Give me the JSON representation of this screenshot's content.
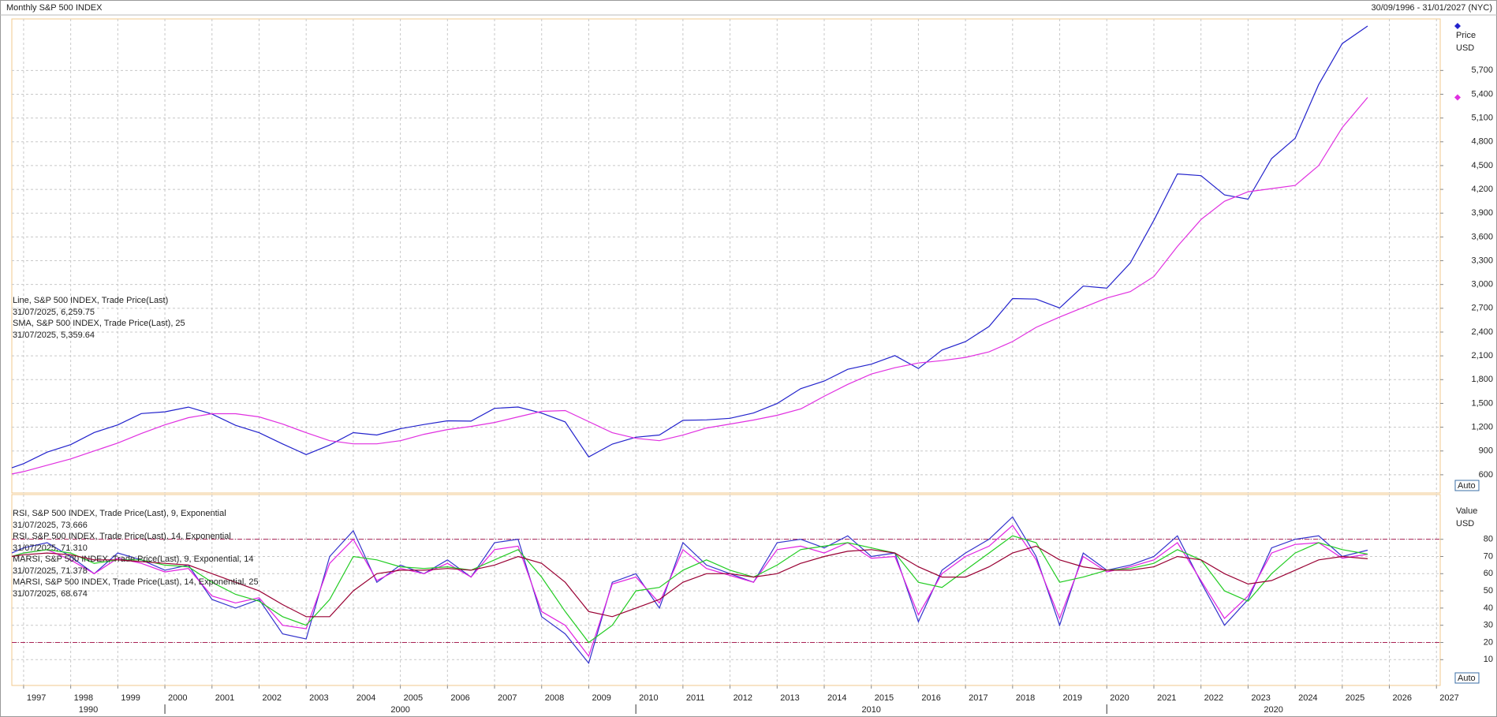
{
  "chart_data": [
    {
      "type": "line",
      "title": "Monthly S&P 500 INDEX",
      "subtitle": "30/09/1996 - 31/01/2027 (NYC)",
      "y_label": "Price",
      "y_unit": "USD",
      "scale_mode": "Auto",
      "grid": true,
      "x": [
        1996.75,
        1997,
        1997.5,
        1998,
        1998.5,
        1999,
        1999.5,
        2000,
        2000.5,
        2001,
        2001.5,
        2002,
        2002.5,
        2003,
        2003.5,
        2004,
        2004.5,
        2005,
        2005.5,
        2006,
        2006.5,
        2007,
        2007.5,
        2008,
        2008.5,
        2009,
        2009.5,
        2010,
        2010.5,
        2011,
        2011.5,
        2012,
        2012.5,
        2013,
        2013.5,
        2014,
        2014.5,
        2015,
        2015.5,
        2016,
        2016.5,
        2017,
        2017.5,
        2018,
        2018.5,
        2019,
        2019.5,
        2020,
        2020.5,
        2021,
        2021.5,
        2022,
        2022.5,
        2023,
        2023.5,
        2024,
        2024.5,
        2025,
        2025.54
      ],
      "xlim": [
        1996.75,
        2027.08
      ],
      "xticks": [
        1997,
        1998,
        1999,
        2000,
        2001,
        2002,
        2003,
        2004,
        2005,
        2006,
        2007,
        2008,
        2009,
        2010,
        2011,
        2012,
        2013,
        2014,
        2015,
        2016,
        2017,
        2018,
        2019,
        2020,
        2021,
        2022,
        2023,
        2024,
        2025,
        2026,
        2027
      ],
      "ylim": [
        370,
        6350
      ],
      "yticks": [
        600,
        900,
        {
          "value": 1200,
          "label": "1,200"
        },
        {
          "value": 1500,
          "label": "1,500"
        },
        {
          "value": 1800,
          "label": "1,800"
        },
        {
          "value": 2100,
          "label": "2,100"
        },
        {
          "value": 2400,
          "label": "2,400"
        },
        {
          "value": 2700,
          "label": "2,700"
        },
        {
          "value": 3000,
          "label": "3,000"
        },
        {
          "value": 3300,
          "label": "3,300"
        },
        {
          "value": 3600,
          "label": "3,600"
        },
        {
          "value": 3900,
          "label": "3,900"
        },
        {
          "value": 4200,
          "label": "4,200"
        },
        {
          "value": 4500,
          "label": "4,500"
        },
        {
          "value": 4800,
          "label": "4,800"
        },
        {
          "value": 5100,
          "label": "5,100"
        },
        {
          "value": 5400,
          "label": "5,400"
        },
        {
          "value": 5700,
          "label": "5,700"
        }
      ],
      "series": [
        {
          "name": "Line, S&P 500 INDEX, Trade Price(Last)",
          "last_label": "31/07/2025, 6,259.75",
          "color": "#2222cc",
          "values": [
            687,
            740,
            885,
            980,
            1133,
            1229,
            1372,
            1394,
            1454,
            1366,
            1224,
            1130,
            989,
            855,
            975,
            1131,
            1101,
            1181,
            1234,
            1280,
            1276,
            1438,
            1455,
            1378,
            1267,
            825,
            987,
            1073,
            1101,
            1286,
            1292,
            1312,
            1379,
            1498,
            1685,
            1782,
            1930,
            1995,
            2103,
            1940,
            2173,
            2279,
            2470,
            2823,
            2816,
            2704,
            2980,
            2954,
            3271,
            3811,
            4395,
            4373,
            4130,
            4076,
            4589,
            4845,
            5522,
            6040,
            6260
          ]
        },
        {
          "name": "SMA, S&P 500 INDEX, Trade Price(Last),  25",
          "last_label": "31/07/2025, 5,359.64",
          "color": "#e030e0",
          "values": [
            610,
            640,
            720,
            800,
            900,
            1000,
            1120,
            1230,
            1320,
            1370,
            1370,
            1330,
            1240,
            1130,
            1030,
            990,
            990,
            1030,
            1110,
            1170,
            1210,
            1260,
            1330,
            1400,
            1410,
            1270,
            1130,
            1060,
            1030,
            1100,
            1190,
            1240,
            1290,
            1350,
            1430,
            1590,
            1740,
            1870,
            1950,
            2010,
            2040,
            2080,
            2150,
            2280,
            2460,
            2590,
            2710,
            2830,
            2910,
            3100,
            3480,
            3820,
            4050,
            4170,
            4210,
            4250,
            4500,
            4980,
            5360
          ]
        }
      ]
    },
    {
      "type": "line",
      "y_label": "Value",
      "y_unit": "USD",
      "scale_mode": "Auto",
      "grid": true,
      "x": [
        1996.75,
        1997,
        1997.5,
        1998,
        1998.5,
        1999,
        1999.5,
        2000,
        2000.5,
        2001,
        2001.5,
        2002,
        2002.5,
        2003,
        2003.5,
        2004,
        2004.5,
        2005,
        2005.5,
        2006,
        2006.5,
        2007,
        2007.5,
        2008,
        2008.5,
        2009,
        2009.5,
        2010,
        2010.5,
        2011,
        2011.5,
        2012,
        2012.5,
        2013,
        2013.5,
        2014,
        2014.5,
        2015,
        2015.5,
        2016,
        2016.5,
        2017,
        2017.5,
        2018,
        2018.5,
        2019,
        2019.5,
        2020,
        2020.5,
        2021,
        2021.5,
        2022,
        2022.5,
        2023,
        2023.5,
        2024,
        2024.5,
        2025,
        2025.54
      ],
      "xlim": [
        1996.75,
        2027.08
      ],
      "xticks": [
        1997,
        1998,
        1999,
        2000,
        2001,
        2002,
        2003,
        2004,
        2005,
        2006,
        2007,
        2008,
        2009,
        2010,
        2011,
        2012,
        2013,
        2014,
        2015,
        2016,
        2017,
        2018,
        2019,
        2020,
        2021,
        2022,
        2023,
        2024,
        2025,
        2026,
        2027
      ],
      "x_groups": [
        "1990",
        "2000",
        "2010",
        "2020"
      ],
      "ylim": [
        -5,
        106
      ],
      "yticks": [
        10,
        20,
        30,
        40,
        50,
        60,
        70,
        80
      ],
      "reference_lines": [
        80,
        20
      ],
      "reference_color": "#aa2255",
      "series": [
        {
          "name": "RSI, S&P 500 INDEX, Trade Price(Last),  9, Exponential",
          "last_label": "31/07/2025, 73.666",
          "color": "#3333cc",
          "values": [
            72,
            75,
            78,
            70,
            60,
            72,
            68,
            62,
            65,
            45,
            40,
            45,
            25,
            22,
            70,
            85,
            55,
            65,
            60,
            68,
            58,
            78,
            80,
            35,
            25,
            8,
            55,
            60,
            40,
            78,
            65,
            60,
            55,
            78,
            80,
            75,
            82,
            70,
            72,
            32,
            62,
            72,
            80,
            93,
            70,
            30,
            72,
            62,
            65,
            70,
            82,
            55,
            30,
            45,
            75,
            80,
            82,
            70,
            73.666
          ]
        },
        {
          "name": "RSI, S&P 500 INDEX, Trade Price(Last),  14, Exponential",
          "last_label": "31/07/2025, 71.310",
          "color": "#e020e0",
          "values": [
            70,
            72,
            74,
            68,
            60,
            69,
            66,
            61,
            63,
            47,
            43,
            46,
            30,
            28,
            66,
            80,
            56,
            63,
            60,
            66,
            58,
            74,
            76,
            38,
            30,
            12,
            54,
            58,
            43,
            74,
            63,
            59,
            55,
            74,
            76,
            72,
            78,
            69,
            70,
            36,
            60,
            70,
            76,
            88,
            68,
            34,
            70,
            61,
            64,
            68,
            78,
            56,
            34,
            47,
            72,
            77,
            78,
            69,
            71.31
          ]
        },
        {
          "name": "MARSI, S&P 500 INDEX, Trade Price(Last),  9, Exponential, 14",
          "last_label": "31/07/2025, 71.378",
          "color": "#22cc22",
          "values": [
            70,
            72,
            74,
            72,
            66,
            68,
            68,
            65,
            64,
            55,
            48,
            44,
            35,
            30,
            45,
            70,
            68,
            64,
            63,
            64,
            62,
            68,
            74,
            58,
            38,
            20,
            30,
            50,
            52,
            62,
            68,
            62,
            58,
            65,
            74,
            76,
            78,
            75,
            72,
            55,
            52,
            62,
            72,
            82,
            78,
            55,
            58,
            62,
            63,
            66,
            74,
            68,
            50,
            44,
            60,
            72,
            78,
            74,
            71.378
          ]
        },
        {
          "name": "MARSI, S&P 500 INDEX, Trade Price(Last),  14, Exponential, 25",
          "last_label": "31/07/2025, 68.674",
          "color": "#990033",
          "values": [
            70,
            71,
            72,
            71,
            68,
            68,
            67,
            66,
            65,
            60,
            55,
            50,
            42,
            35,
            35,
            50,
            60,
            62,
            62,
            63,
            62,
            65,
            70,
            66,
            55,
            38,
            35,
            40,
            45,
            55,
            60,
            60,
            58,
            60,
            66,
            70,
            73,
            74,
            72,
            64,
            58,
            58,
            64,
            72,
            76,
            68,
            64,
            62,
            62,
            64,
            70,
            68,
            60,
            54,
            56,
            62,
            68,
            70,
            68.674
          ]
        }
      ]
    }
  ]
}
